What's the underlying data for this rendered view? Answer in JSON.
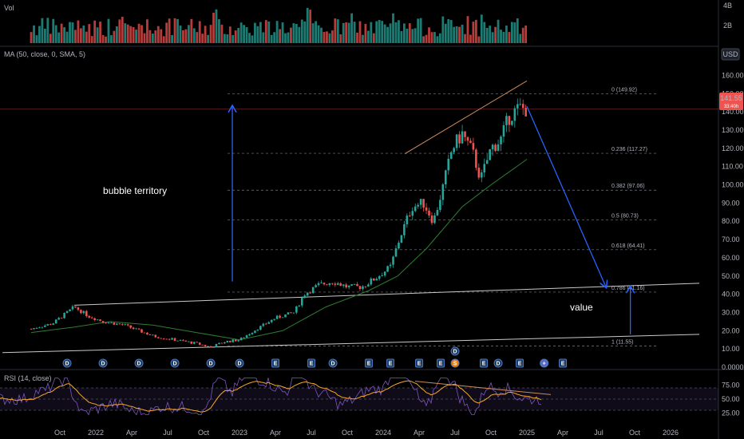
{
  "panels": {
    "volume_label": "Vol",
    "ma_label": "MA (50, close, 0, SMA, 5)",
    "rsi_label": "RSI (14, close)",
    "currency": "USD",
    "last_price": "141.55",
    "last_time": "33:40h"
  },
  "chart_data": {
    "type": "candlestick",
    "x_ticks": [
      "Oct",
      "2022",
      "Apr",
      "Jul",
      "Oct",
      "2023",
      "Apr",
      "Jul",
      "Oct",
      "2024",
      "Apr",
      "Jul",
      "Oct",
      "2025",
      "Apr",
      "Jul",
      "Oct",
      "2026"
    ],
    "price_ticks": [
      "160.00",
      "150.00",
      "140.00",
      "130.00",
      "120.00",
      "110.00",
      "100.00",
      "90.00",
      "80.00",
      "70.00",
      "60.00",
      "50.00",
      "40.00",
      "30.00",
      "20.00",
      "10.00",
      "0.0000"
    ],
    "price_range": [
      0,
      165
    ],
    "volume_ticks": [
      "4B",
      "2B"
    ],
    "rsi_ticks": [
      "75.00",
      "50.00",
      "25.00"
    ],
    "rsi_range": [
      0,
      100
    ],
    "rsi_levels": [
      70,
      50,
      30
    ],
    "fib_levels": [
      {
        "label": "0 (149.92)",
        "value": 149.92
      },
      {
        "label": "0.236 (117.27)",
        "value": 117.27
      },
      {
        "label": "0.382 (97.06)",
        "value": 97.06
      },
      {
        "label": "0.5 (80.73)",
        "value": 80.73
      },
      {
        "label": "0.618 (64.41)",
        "value": 64.41
      },
      {
        "label": "0.786 (41.16)",
        "value": 41.16
      },
      {
        "label": "1 (11.55)",
        "value": 11.55
      }
    ],
    "close_series": [
      {
        "t": 2021.55,
        "v": 21
      },
      {
        "t": 2021.7,
        "v": 24
      },
      {
        "t": 2021.85,
        "v": 33
      },
      {
        "t": 2021.95,
        "v": 28
      },
      {
        "t": 2022.05,
        "v": 25
      },
      {
        "t": 2022.2,
        "v": 23
      },
      {
        "t": 2022.3,
        "v": 20
      },
      {
        "t": 2022.4,
        "v": 17
      },
      {
        "t": 2022.55,
        "v": 15
      },
      {
        "t": 2022.7,
        "v": 13
      },
      {
        "t": 2022.8,
        "v": 11
      },
      {
        "t": 2022.9,
        "v": 14
      },
      {
        "t": 2023.0,
        "v": 15
      },
      {
        "t": 2023.1,
        "v": 20
      },
      {
        "t": 2023.25,
        "v": 27
      },
      {
        "t": 2023.38,
        "v": 30
      },
      {
        "t": 2023.45,
        "v": 40
      },
      {
        "t": 2023.55,
        "v": 45
      },
      {
        "t": 2023.65,
        "v": 47
      },
      {
        "t": 2023.75,
        "v": 44
      },
      {
        "t": 2023.85,
        "v": 44
      },
      {
        "t": 2023.95,
        "v": 49
      },
      {
        "t": 2024.05,
        "v": 55
      },
      {
        "t": 2024.12,
        "v": 72
      },
      {
        "t": 2024.2,
        "v": 88
      },
      {
        "t": 2024.28,
        "v": 90
      },
      {
        "t": 2024.35,
        "v": 80
      },
      {
        "t": 2024.42,
        "v": 100
      },
      {
        "t": 2024.48,
        "v": 120
      },
      {
        "t": 2024.55,
        "v": 128
      },
      {
        "t": 2024.62,
        "v": 118
      },
      {
        "t": 2024.68,
        "v": 103
      },
      {
        "t": 2024.75,
        "v": 120
      },
      {
        "t": 2024.82,
        "v": 125
      },
      {
        "t": 2024.88,
        "v": 138
      },
      {
        "t": 2024.95,
        "v": 142
      },
      {
        "t": 2025.0,
        "v": 141.55
      }
    ],
    "ma_series": [
      {
        "t": 2021.55,
        "v": 19
      },
      {
        "t": 2021.85,
        "v": 22
      },
      {
        "t": 2022.1,
        "v": 25
      },
      {
        "t": 2022.4,
        "v": 23
      },
      {
        "t": 2022.7,
        "v": 19
      },
      {
        "t": 2023.0,
        "v": 15
      },
      {
        "t": 2023.3,
        "v": 20
      },
      {
        "t": 2023.6,
        "v": 33
      },
      {
        "t": 2023.9,
        "v": 42
      },
      {
        "t": 2024.1,
        "v": 50
      },
      {
        "t": 2024.3,
        "v": 65
      },
      {
        "t": 2024.55,
        "v": 88
      },
      {
        "t": 2024.75,
        "v": 100
      },
      {
        "t": 2025.0,
        "v": 114
      }
    ],
    "annotations": [
      {
        "text": "bubble territory",
        "t": 2022.05,
        "v": 95
      },
      {
        "text": "value",
        "t": 2025.3,
        "v": 31
      }
    ],
    "arrows": [
      {
        "from": {
          "t": 2022.95,
          "v": 47
        },
        "to": {
          "t": 2022.95,
          "v": 143
        }
      },
      {
        "from": {
          "t": 2025.0,
          "v": 143
        },
        "to": {
          "t": 2025.55,
          "v": 44
        }
      },
      {
        "from": {
          "t": 2025.72,
          "v": 18
        },
        "to": {
          "t": 2025.72,
          "v": 44
        }
      }
    ],
    "trendlines": [
      {
        "from": {
          "t": 2021.35,
          "v": 8
        },
        "to": {
          "t": 2026.2,
          "v": 18
        }
      },
      {
        "from": {
          "t": 2021.85,
          "v": 34
        },
        "to": {
          "t": 2026.2,
          "v": 46
        }
      },
      {
        "from": {
          "t": 2024.15,
          "v": 117
        },
        "to": {
          "t": 2025.0,
          "v": 157
        }
      }
    ],
    "event_badges": [
      {
        "t": 2021.8,
        "letter": "D"
      },
      {
        "t": 2022.05,
        "letter": "D"
      },
      {
        "t": 2022.3,
        "letter": "D"
      },
      {
        "t": 2022.55,
        "letter": "D"
      },
      {
        "t": 2022.8,
        "letter": "D"
      },
      {
        "t": 2023.0,
        "letter": "D"
      },
      {
        "t": 2023.25,
        "letter": "E"
      },
      {
        "t": 2023.5,
        "letter": "E"
      },
      {
        "t": 2023.65,
        "letter": "D"
      },
      {
        "t": 2023.9,
        "letter": "E"
      },
      {
        "t": 2024.05,
        "letter": "E"
      },
      {
        "t": 2024.25,
        "letter": "E"
      },
      {
        "t": 2024.4,
        "letter": "E"
      },
      {
        "t": 2024.5,
        "letter": "S"
      },
      {
        "t": 2024.7,
        "letter": "E"
      },
      {
        "t": 2024.8,
        "letter": "D"
      },
      {
        "t": 2024.95,
        "letter": "E"
      },
      {
        "t": 2025.12,
        "letter": "+"
      },
      {
        "t": 2025.25,
        "letter": "E"
      }
    ],
    "grid": false,
    "legend": "top-left"
  },
  "colors": {
    "up": "#26a69a",
    "down": "#ef5350",
    "ma": "#2e7d32",
    "rsi": "#7e57c2",
    "rsi_ma": "#f9a825",
    "arrow": "#2962ff",
    "badge": "#2962ff",
    "trend": "#c9c9c9",
    "wedge": "#c8885a"
  }
}
